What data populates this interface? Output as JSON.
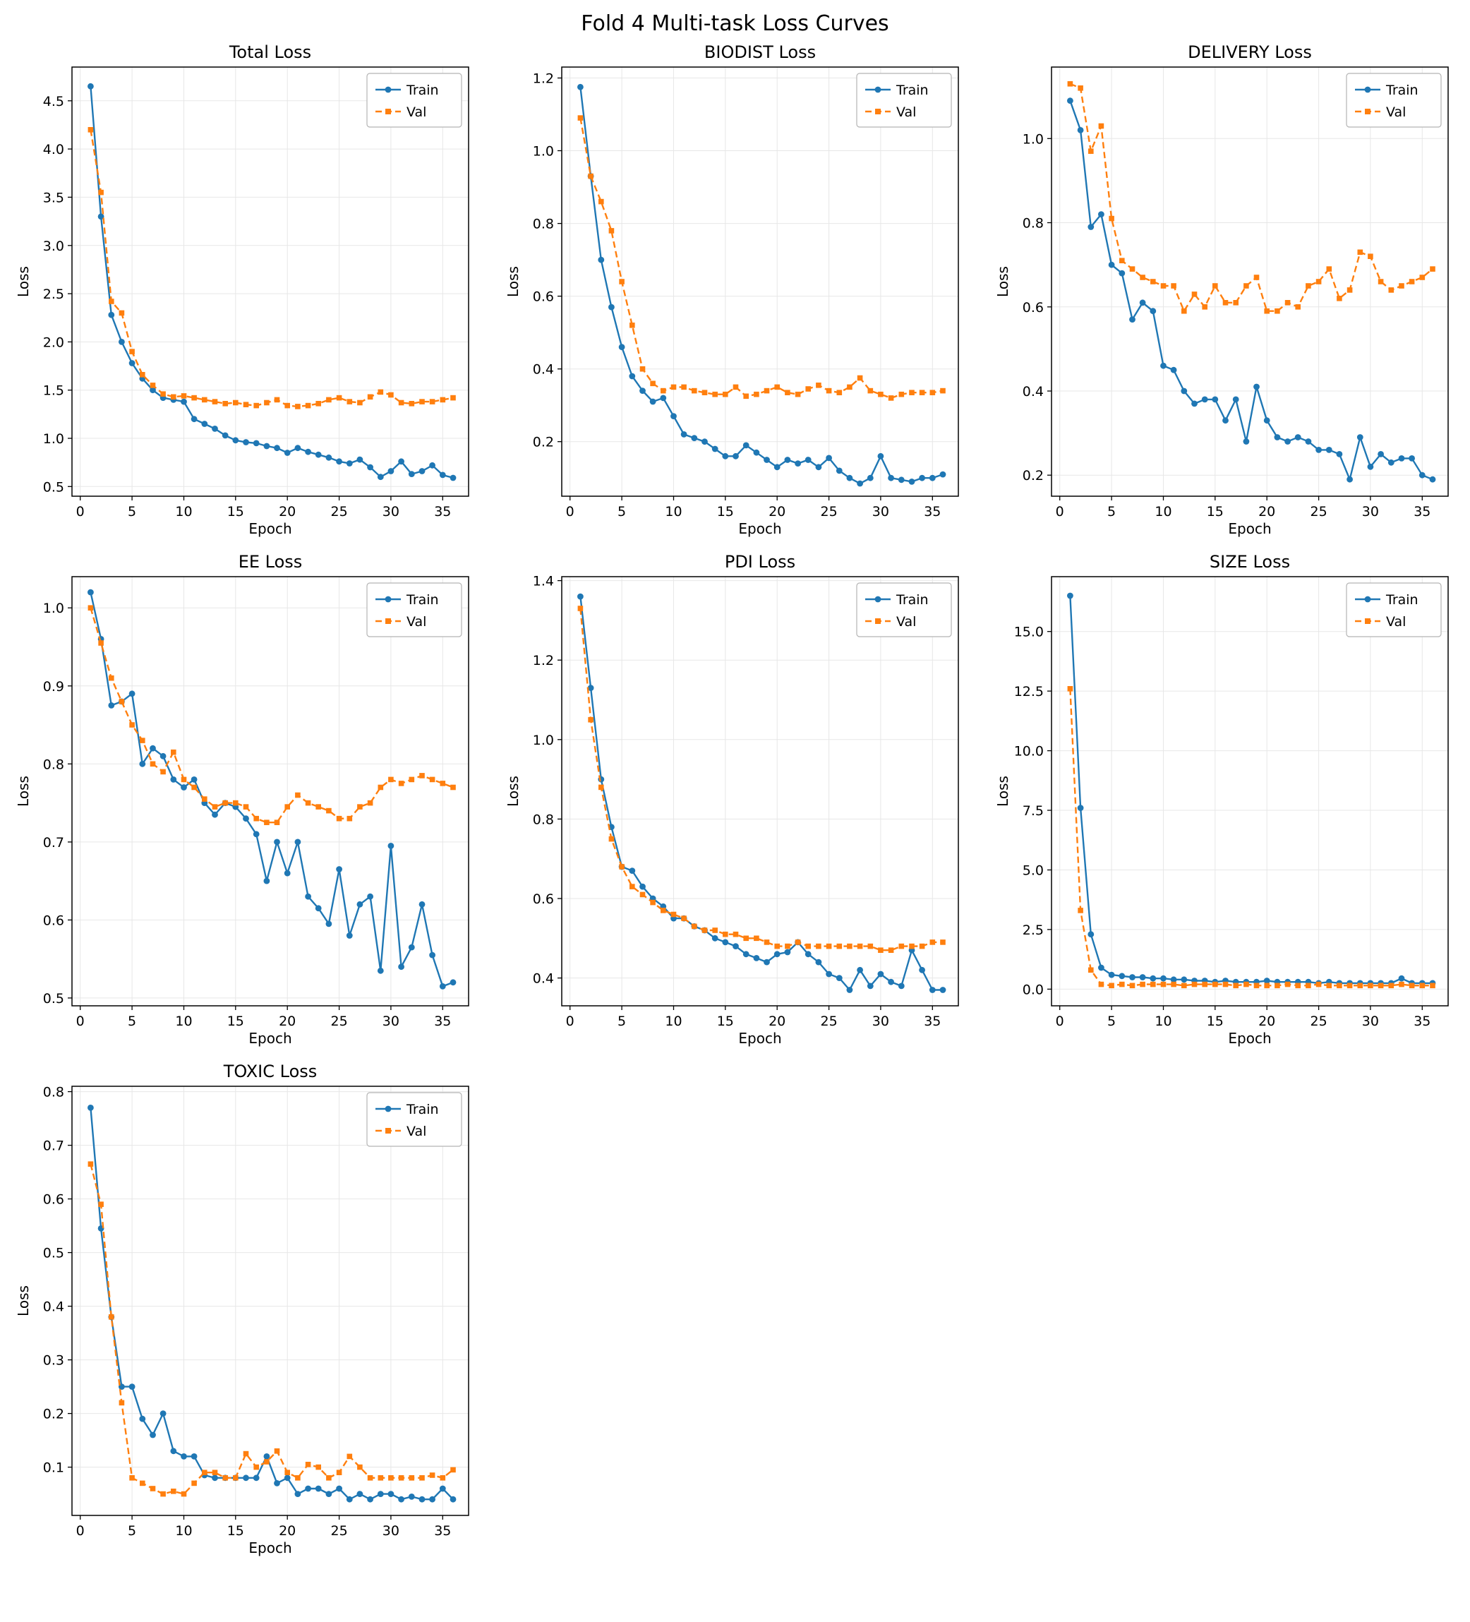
{
  "title": "Fold 4 Multi-task Loss Curves",
  "colors": {
    "train": "#1f77b4",
    "val": "#ff7f0e"
  },
  "chart_data": {
    "type": "line",
    "epochs": [
      1,
      2,
      3,
      4,
      5,
      6,
      7,
      8,
      9,
      10,
      11,
      12,
      13,
      14,
      15,
      16,
      17,
      18,
      19,
      20,
      21,
      22,
      23,
      24,
      25,
      26,
      27,
      28,
      29,
      30,
      31,
      32,
      33,
      34,
      35,
      36
    ],
    "legend": {
      "train": "Train",
      "val": "Val"
    },
    "legend_position": "upper right",
    "grid": true,
    "charts": [
      {
        "title": "Total Loss",
        "xlabel": "Epoch",
        "ylabel": "Loss",
        "xlim": [
          -0.8,
          37.5
        ],
        "ylim": [
          0.4,
          4.85
        ],
        "xticks": [
          0,
          5,
          10,
          15,
          20,
          25,
          30,
          35
        ],
        "yticks": [
          0.5,
          1.0,
          1.5,
          2.0,
          2.5,
          3.0,
          3.5,
          4.0,
          4.5
        ],
        "series": [
          {
            "name": "Train",
            "values": [
              4.65,
              3.3,
              2.28,
              2.0,
              1.78,
              1.62,
              1.5,
              1.42,
              1.4,
              1.38,
              1.2,
              1.15,
              1.1,
              1.03,
              0.98,
              0.96,
              0.95,
              0.92,
              0.9,
              0.85,
              0.9,
              0.86,
              0.83,
              0.8,
              0.76,
              0.74,
              0.78,
              0.7,
              0.6,
              0.66,
              0.76,
              0.63,
              0.66,
              0.72,
              0.62,
              0.59
            ]
          },
          {
            "name": "Val",
            "values": [
              4.2,
              3.55,
              2.42,
              2.3,
              1.9,
              1.66,
              1.55,
              1.46,
              1.43,
              1.44,
              1.42,
              1.4,
              1.38,
              1.36,
              1.37,
              1.35,
              1.34,
              1.37,
              1.4,
              1.34,
              1.33,
              1.34,
              1.36,
              1.4,
              1.42,
              1.38,
              1.37,
              1.43,
              1.48,
              1.45,
              1.37,
              1.36,
              1.38,
              1.38,
              1.4,
              1.42
            ]
          }
        ]
      },
      {
        "title": "BIODIST Loss",
        "xlabel": "Epoch",
        "ylabel": "Loss",
        "xlim": [
          -0.8,
          37.5
        ],
        "ylim": [
          0.05,
          1.23
        ],
        "xticks": [
          0,
          5,
          10,
          15,
          20,
          25,
          30,
          35
        ],
        "yticks": [
          0.2,
          0.4,
          0.6,
          0.8,
          1.0,
          1.2
        ],
        "series": [
          {
            "name": "Train",
            "values": [
              1.175,
              0.93,
              0.7,
              0.57,
              0.46,
              0.38,
              0.34,
              0.31,
              0.32,
              0.27,
              0.22,
              0.21,
              0.2,
              0.18,
              0.16,
              0.16,
              0.19,
              0.17,
              0.15,
              0.13,
              0.15,
              0.14,
              0.15,
              0.13,
              0.155,
              0.12,
              0.1,
              0.085,
              0.1,
              0.16,
              0.1,
              0.095,
              0.09,
              0.1,
              0.1,
              0.11
            ]
          },
          {
            "name": "Val",
            "values": [
              1.09,
              0.93,
              0.86,
              0.78,
              0.64,
              0.52,
              0.4,
              0.36,
              0.34,
              0.35,
              0.35,
              0.34,
              0.335,
              0.33,
              0.33,
              0.35,
              0.325,
              0.33,
              0.34,
              0.35,
              0.335,
              0.33,
              0.345,
              0.355,
              0.34,
              0.335,
              0.35,
              0.375,
              0.34,
              0.33,
              0.32,
              0.33,
              0.335,
              0.335,
              0.335,
              0.34
            ]
          }
        ]
      },
      {
        "title": "DELIVERY Loss",
        "xlabel": "Epoch",
        "ylabel": "Loss",
        "xlim": [
          -0.8,
          37.5
        ],
        "ylim": [
          0.15,
          1.17
        ],
        "xticks": [
          0,
          5,
          10,
          15,
          20,
          25,
          30,
          35
        ],
        "yticks": [
          0.2,
          0.4,
          0.6,
          0.8,
          1.0
        ],
        "series": [
          {
            "name": "Train",
            "values": [
              1.09,
              1.02,
              0.79,
              0.82,
              0.7,
              0.68,
              0.57,
              0.61,
              0.59,
              0.46,
              0.45,
              0.4,
              0.37,
              0.38,
              0.38,
              0.33,
              0.38,
              0.28,
              0.41,
              0.33,
              0.29,
              0.28,
              0.29,
              0.28,
              0.26,
              0.26,
              0.25,
              0.19,
              0.29,
              0.22,
              0.25,
              0.23,
              0.24,
              0.24,
              0.2,
              0.19
            ]
          },
          {
            "name": "Val",
            "values": [
              1.13,
              1.12,
              0.97,
              1.03,
              0.81,
              0.71,
              0.69,
              0.67,
              0.66,
              0.65,
              0.65,
              0.59,
              0.63,
              0.6,
              0.65,
              0.61,
              0.61,
              0.65,
              0.67,
              0.59,
              0.59,
              0.61,
              0.6,
              0.65,
              0.66,
              0.69,
              0.62,
              0.64,
              0.73,
              0.72,
              0.66,
              0.64,
              0.65,
              0.66,
              0.67,
              0.69
            ]
          }
        ]
      },
      {
        "title": "EE Loss",
        "xlabel": "Epoch",
        "ylabel": "Loss",
        "xlim": [
          -0.8,
          37.5
        ],
        "ylim": [
          0.49,
          1.04
        ],
        "xticks": [
          0,
          5,
          10,
          15,
          20,
          25,
          30,
          35
        ],
        "yticks": [
          0.5,
          0.6,
          0.7,
          0.8,
          0.9,
          1.0
        ],
        "series": [
          {
            "name": "Train",
            "values": [
              1.02,
              0.96,
              0.875,
              0.88,
              0.89,
              0.8,
              0.82,
              0.81,
              0.78,
              0.77,
              0.78,
              0.75,
              0.735,
              0.75,
              0.745,
              0.73,
              0.71,
              0.65,
              0.7,
              0.66,
              0.7,
              0.63,
              0.615,
              0.595,
              0.665,
              0.58,
              0.62,
              0.63,
              0.535,
              0.695,
              0.54,
              0.565,
              0.62,
              0.555,
              0.515,
              0.52
            ]
          },
          {
            "name": "Val",
            "values": [
              1.0,
              0.955,
              0.91,
              0.88,
              0.85,
              0.83,
              0.8,
              0.79,
              0.815,
              0.78,
              0.77,
              0.755,
              0.745,
              0.75,
              0.75,
              0.745,
              0.73,
              0.725,
              0.725,
              0.745,
              0.76,
              0.75,
              0.745,
              0.74,
              0.73,
              0.73,
              0.745,
              0.75,
              0.77,
              0.78,
              0.775,
              0.78,
              0.785,
              0.78,
              0.775,
              0.77
            ]
          }
        ]
      },
      {
        "title": "PDI Loss",
        "xlabel": "Epoch",
        "ylabel": "Loss",
        "xlim": [
          -0.8,
          37.5
        ],
        "ylim": [
          0.33,
          1.41
        ],
        "xticks": [
          0,
          5,
          10,
          15,
          20,
          25,
          30,
          35
        ],
        "yticks": [
          0.4,
          0.6,
          0.8,
          1.0,
          1.2,
          1.4
        ],
        "series": [
          {
            "name": "Train",
            "values": [
              1.36,
              1.13,
              0.9,
              0.78,
              0.68,
              0.67,
              0.63,
              0.6,
              0.58,
              0.55,
              0.55,
              0.53,
              0.52,
              0.5,
              0.49,
              0.48,
              0.46,
              0.45,
              0.44,
              0.46,
              0.465,
              0.49,
              0.46,
              0.44,
              0.41,
              0.4,
              0.37,
              0.42,
              0.38,
              0.41,
              0.39,
              0.38,
              0.47,
              0.42,
              0.37,
              0.37
            ]
          },
          {
            "name": "Val",
            "values": [
              1.33,
              1.05,
              0.88,
              0.75,
              0.68,
              0.63,
              0.61,
              0.59,
              0.57,
              0.56,
              0.55,
              0.53,
              0.52,
              0.52,
              0.51,
              0.51,
              0.5,
              0.5,
              0.49,
              0.48,
              0.48,
              0.49,
              0.48,
              0.48,
              0.48,
              0.48,
              0.48,
              0.48,
              0.48,
              0.47,
              0.47,
              0.48,
              0.48,
              0.48,
              0.49,
              0.49
            ]
          }
        ]
      },
      {
        "title": "SIZE Loss",
        "xlabel": "Epoch",
        "ylabel": "Loss",
        "xlim": [
          -0.8,
          37.5
        ],
        "ylim": [
          -0.7,
          17.3
        ],
        "xticks": [
          0,
          5,
          10,
          15,
          20,
          25,
          30,
          35
        ],
        "yticks": [
          0.0,
          2.5,
          5.0,
          7.5,
          10.0,
          12.5,
          15.0
        ],
        "series": [
          {
            "name": "Train",
            "values": [
              16.5,
              7.6,
              2.3,
              0.9,
              0.6,
              0.55,
              0.5,
              0.5,
              0.45,
              0.45,
              0.4,
              0.4,
              0.35,
              0.35,
              0.3,
              0.35,
              0.3,
              0.3,
              0.3,
              0.35,
              0.3,
              0.3,
              0.3,
              0.3,
              0.25,
              0.3,
              0.25,
              0.25,
              0.25,
              0.25,
              0.25,
              0.25,
              0.45,
              0.25,
              0.25,
              0.25
            ]
          },
          {
            "name": "Val",
            "values": [
              12.6,
              3.3,
              0.8,
              0.2,
              0.15,
              0.2,
              0.15,
              0.2,
              0.2,
              0.2,
              0.2,
              0.15,
              0.2,
              0.2,
              0.2,
              0.2,
              0.15,
              0.2,
              0.15,
              0.15,
              0.15,
              0.2,
              0.15,
              0.15,
              0.2,
              0.15,
              0.15,
              0.15,
              0.15,
              0.15,
              0.15,
              0.15,
              0.2,
              0.15,
              0.15,
              0.15
            ]
          }
        ]
      },
      {
        "title": "TOXIC Loss",
        "xlabel": "Epoch",
        "ylabel": "Loss",
        "xlim": [
          -0.8,
          37.5
        ],
        "ylim": [
          0.01,
          0.81
        ],
        "xticks": [
          0,
          5,
          10,
          15,
          20,
          25,
          30,
          35
        ],
        "yticks": [
          0.1,
          0.2,
          0.3,
          0.4,
          0.5,
          0.6,
          0.7,
          0.8
        ],
        "series": [
          {
            "name": "Train",
            "values": [
              0.77,
              0.545,
              0.38,
              0.25,
              0.25,
              0.19,
              0.16,
              0.2,
              0.13,
              0.12,
              0.12,
              0.085,
              0.08,
              0.08,
              0.08,
              0.08,
              0.08,
              0.12,
              0.07,
              0.08,
              0.05,
              0.06,
              0.06,
              0.05,
              0.06,
              0.04,
              0.05,
              0.04,
              0.05,
              0.05,
              0.04,
              0.045,
              0.04,
              0.04,
              0.06,
              0.04
            ]
          },
          {
            "name": "Val",
            "values": [
              0.665,
              0.59,
              0.38,
              0.22,
              0.08,
              0.07,
              0.06,
              0.05,
              0.055,
              0.05,
              0.07,
              0.09,
              0.09,
              0.08,
              0.08,
              0.125,
              0.1,
              0.11,
              0.13,
              0.09,
              0.08,
              0.105,
              0.1,
              0.08,
              0.09,
              0.12,
              0.1,
              0.08,
              0.08,
              0.08,
              0.08,
              0.08,
              0.08,
              0.085,
              0.08,
              0.095
            ]
          }
        ]
      }
    ]
  }
}
